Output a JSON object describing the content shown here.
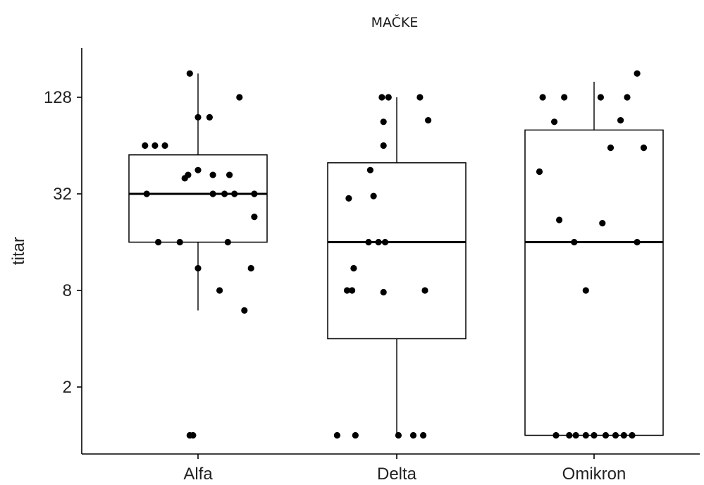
{
  "chart_data": {
    "type": "boxplot",
    "title": "MAČKE",
    "xlabel": "",
    "ylabel": "titar",
    "y_scale": "log2",
    "ylim": [
      0.9,
      220
    ],
    "y_ticks": [
      2,
      8,
      32,
      128
    ],
    "y_tick_labels": [
      "2",
      "8",
      "32",
      "128"
    ],
    "grid": false,
    "categories": [
      "Alfa",
      "Delta",
      "Omikron"
    ],
    "boxes": [
      {
        "category": "Alfa",
        "whisker_low": 6,
        "q1": 16,
        "median": 32,
        "q3": 56,
        "whisker_high": 180
      },
      {
        "category": "Delta",
        "whisker_low": 1,
        "q1": 4,
        "median": 16,
        "q3": 50,
        "whisker_high": 128
      },
      {
        "category": "Omikron",
        "whisker_low": 1,
        "q1": 1,
        "median": 16,
        "q3": 80,
        "whisker_high": 160
      }
    ],
    "points": [
      {
        "category": "Alfa",
        "jitter": -0.05,
        "y": 180
      },
      {
        "category": "Alfa",
        "jitter": 0.25,
        "y": 128
      },
      {
        "category": "Alfa",
        "jitter": 0.0,
        "y": 96
      },
      {
        "category": "Alfa",
        "jitter": 0.07,
        "y": 96
      },
      {
        "category": "Alfa",
        "jitter": -0.32,
        "y": 64
      },
      {
        "category": "Alfa",
        "jitter": -0.26,
        "y": 64
      },
      {
        "category": "Alfa",
        "jitter": -0.2,
        "y": 64
      },
      {
        "category": "Alfa",
        "jitter": 0.0,
        "y": 45
      },
      {
        "category": "Alfa",
        "jitter": -0.06,
        "y": 42
      },
      {
        "category": "Alfa",
        "jitter": 0.09,
        "y": 42
      },
      {
        "category": "Alfa",
        "jitter": 0.19,
        "y": 42
      },
      {
        "category": "Alfa",
        "jitter": -0.08,
        "y": 40
      },
      {
        "category": "Alfa",
        "jitter": -0.31,
        "y": 32
      },
      {
        "category": "Alfa",
        "jitter": 0.09,
        "y": 32
      },
      {
        "category": "Alfa",
        "jitter": 0.16,
        "y": 32
      },
      {
        "category": "Alfa",
        "jitter": 0.22,
        "y": 32
      },
      {
        "category": "Alfa",
        "jitter": 0.34,
        "y": 32
      },
      {
        "category": "Alfa",
        "jitter": 0.34,
        "y": 23
      },
      {
        "category": "Alfa",
        "jitter": -0.24,
        "y": 16
      },
      {
        "category": "Alfa",
        "jitter": -0.11,
        "y": 16
      },
      {
        "category": "Alfa",
        "jitter": 0.18,
        "y": 16
      },
      {
        "category": "Alfa",
        "jitter": 0.0,
        "y": 11
      },
      {
        "category": "Alfa",
        "jitter": 0.32,
        "y": 11
      },
      {
        "category": "Alfa",
        "jitter": 0.13,
        "y": 8
      },
      {
        "category": "Alfa",
        "jitter": 0.28,
        "y": 6
      },
      {
        "category": "Alfa",
        "jitter": -0.05,
        "y": 1
      },
      {
        "category": "Alfa",
        "jitter": -0.03,
        "y": 1
      },
      {
        "category": "Delta",
        "jitter": -0.09,
        "y": 128
      },
      {
        "category": "Delta",
        "jitter": -0.05,
        "y": 128
      },
      {
        "category": "Delta",
        "jitter": 0.14,
        "y": 128
      },
      {
        "category": "Delta",
        "jitter": -0.08,
        "y": 90
      },
      {
        "category": "Delta",
        "jitter": 0.19,
        "y": 92
      },
      {
        "category": "Delta",
        "jitter": -0.08,
        "y": 64
      },
      {
        "category": "Delta",
        "jitter": -0.16,
        "y": 45
      },
      {
        "category": "Delta",
        "jitter": -0.29,
        "y": 30
      },
      {
        "category": "Delta",
        "jitter": -0.14,
        "y": 31
      },
      {
        "category": "Delta",
        "jitter": -0.17,
        "y": 16
      },
      {
        "category": "Delta",
        "jitter": -0.11,
        "y": 16
      },
      {
        "category": "Delta",
        "jitter": -0.07,
        "y": 16
      },
      {
        "category": "Delta",
        "jitter": -0.26,
        "y": 11
      },
      {
        "category": "Delta",
        "jitter": -0.27,
        "y": 8
      },
      {
        "category": "Delta",
        "jitter": -0.3,
        "y": 8
      },
      {
        "category": "Delta",
        "jitter": -0.08,
        "y": 7.8
      },
      {
        "category": "Delta",
        "jitter": 0.17,
        "y": 8
      },
      {
        "category": "Delta",
        "jitter": -0.36,
        "y": 1
      },
      {
        "category": "Delta",
        "jitter": -0.25,
        "y": 1
      },
      {
        "category": "Delta",
        "jitter": 0.01,
        "y": 1
      },
      {
        "category": "Delta",
        "jitter": 0.1,
        "y": 1
      },
      {
        "category": "Delta",
        "jitter": 0.16,
        "y": 1
      },
      {
        "category": "Omikron",
        "jitter": 0.26,
        "y": 180
      },
      {
        "category": "Omikron",
        "jitter": -0.31,
        "y": 128
      },
      {
        "category": "Omikron",
        "jitter": -0.18,
        "y": 128
      },
      {
        "category": "Omikron",
        "jitter": 0.04,
        "y": 128
      },
      {
        "category": "Omikron",
        "jitter": 0.2,
        "y": 128
      },
      {
        "category": "Omikron",
        "jitter": -0.24,
        "y": 90
      },
      {
        "category": "Omikron",
        "jitter": 0.16,
        "y": 92
      },
      {
        "category": "Omikron",
        "jitter": 0.1,
        "y": 62
      },
      {
        "category": "Omikron",
        "jitter": 0.3,
        "y": 62
      },
      {
        "category": "Omikron",
        "jitter": -0.33,
        "y": 44
      },
      {
        "category": "Omikron",
        "jitter": -0.21,
        "y": 22
      },
      {
        "category": "Omikron",
        "jitter": 0.05,
        "y": 21
      },
      {
        "category": "Omikron",
        "jitter": -0.12,
        "y": 16
      },
      {
        "category": "Omikron",
        "jitter": 0.26,
        "y": 16
      },
      {
        "category": "Omikron",
        "jitter": -0.05,
        "y": 8
      },
      {
        "category": "Omikron",
        "jitter": -0.23,
        "y": 1
      },
      {
        "category": "Omikron",
        "jitter": -0.15,
        "y": 1
      },
      {
        "category": "Omikron",
        "jitter": -0.11,
        "y": 1
      },
      {
        "category": "Omikron",
        "jitter": -0.05,
        "y": 1
      },
      {
        "category": "Omikron",
        "jitter": 0.0,
        "y": 1
      },
      {
        "category": "Omikron",
        "jitter": 0.07,
        "y": 1
      },
      {
        "category": "Omikron",
        "jitter": 0.13,
        "y": 1
      },
      {
        "category": "Omikron",
        "jitter": 0.18,
        "y": 1
      },
      {
        "category": "Omikron",
        "jitter": 0.23,
        "y": 1
      }
    ]
  }
}
